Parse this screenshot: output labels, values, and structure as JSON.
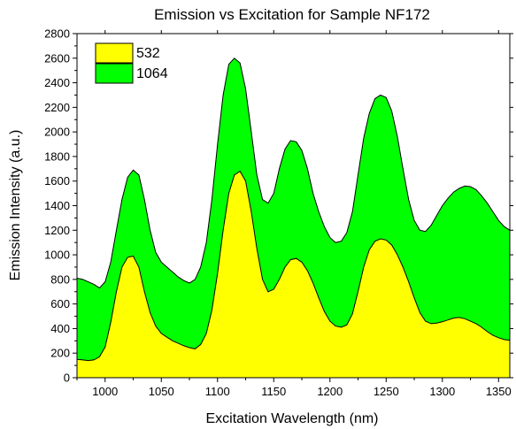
{
  "chart_data": {
    "type": "area",
    "title": "Emission vs Excitation for Sample NF172",
    "xlabel": "Excitation Wavelength (nm)",
    "ylabel": "Emission Intensity (a.u.)",
    "xlim": [
      975,
      1360
    ],
    "ylim": [
      0,
      2800
    ],
    "xticks": [
      1000,
      1050,
      1100,
      1150,
      1200,
      1250,
      1300,
      1350
    ],
    "yticks": [
      0,
      200,
      400,
      600,
      800,
      1000,
      1200,
      1400,
      1600,
      1800,
      2000,
      2200,
      2400,
      2600,
      2800
    ],
    "legend_position": "top-left",
    "grid": false,
    "x": [
      975,
      980,
      985,
      990,
      995,
      1000,
      1005,
      1010,
      1015,
      1020,
      1025,
      1030,
      1035,
      1040,
      1045,
      1050,
      1055,
      1060,
      1065,
      1070,
      1075,
      1080,
      1085,
      1090,
      1095,
      1100,
      1105,
      1110,
      1115,
      1120,
      1125,
      1130,
      1135,
      1140,
      1145,
      1150,
      1155,
      1160,
      1165,
      1170,
      1175,
      1180,
      1185,
      1190,
      1195,
      1200,
      1205,
      1210,
      1215,
      1220,
      1225,
      1230,
      1235,
      1240,
      1245,
      1250,
      1255,
      1260,
      1265,
      1270,
      1275,
      1280,
      1285,
      1290,
      1295,
      1300,
      1305,
      1310,
      1315,
      1320,
      1325,
      1330,
      1335,
      1340,
      1345,
      1350,
      1355,
      1360
    ],
    "series": [
      {
        "name": "532",
        "color": "#ffff00",
        "values": [
          150,
          145,
          140,
          145,
          170,
          250,
          450,
          700,
          900,
          980,
          990,
          900,
          700,
          530,
          420,
          360,
          330,
          300,
          280,
          260,
          245,
          235,
          270,
          360,
          550,
          850,
          1200,
          1500,
          1650,
          1680,
          1600,
          1350,
          1050,
          800,
          700,
          720,
          800,
          900,
          960,
          970,
          940,
          870,
          770,
          650,
          540,
          460,
          420,
          410,
          430,
          520,
          700,
          900,
          1040,
          1110,
          1130,
          1120,
          1080,
          1000,
          900,
          780,
          650,
          530,
          460,
          440,
          445,
          455,
          470,
          485,
          490,
          480,
          460,
          440,
          410,
          375,
          345,
          325,
          310,
          305
        ]
      },
      {
        "name": "1064",
        "color": "#00ff00",
        "values": [
          810,
          800,
          780,
          760,
          730,
          780,
          940,
          1200,
          1450,
          1630,
          1690,
          1650,
          1450,
          1200,
          1020,
          940,
          900,
          860,
          820,
          790,
          770,
          800,
          900,
          1100,
          1450,
          1900,
          2300,
          2550,
          2600,
          2560,
          2350,
          2000,
          1650,
          1450,
          1420,
          1500,
          1700,
          1860,
          1930,
          1920,
          1850,
          1700,
          1500,
          1350,
          1230,
          1140,
          1100,
          1110,
          1180,
          1350,
          1650,
          1950,
          2150,
          2270,
          2300,
          2280,
          2170,
          1960,
          1700,
          1450,
          1280,
          1200,
          1190,
          1240,
          1320,
          1400,
          1460,
          1510,
          1540,
          1560,
          1555,
          1530,
          1480,
          1420,
          1350,
          1280,
          1230,
          1200
        ]
      }
    ]
  }
}
